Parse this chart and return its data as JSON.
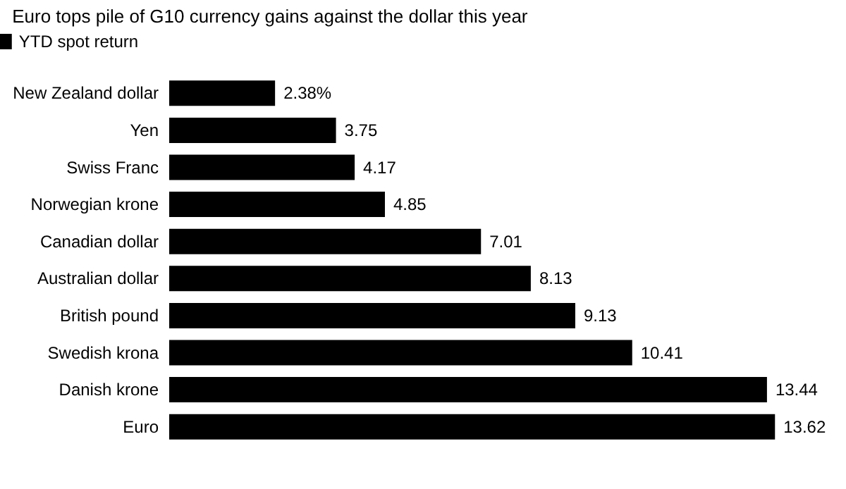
{
  "chart_data": {
    "type": "bar",
    "orientation": "horizontal",
    "title": "Euro tops pile of G10 currency gains against the dollar this year",
    "categories": [
      "New Zealand dollar",
      "Yen",
      "Swiss Franc",
      "Norwegian krone",
      "Canadian dollar",
      "Australian dollar",
      "British pound",
      "Swedish krona",
      "Danish krone",
      "Euro"
    ],
    "series": [
      {
        "name": "YTD spot return",
        "color": "#000000",
        "values": [
          2.38,
          3.75,
          4.17,
          4.85,
          7.01,
          8.13,
          9.13,
          10.41,
          13.44,
          13.62
        ],
        "value_labels": [
          "2.38%",
          "3.75",
          "4.17",
          "4.85",
          "7.01",
          "8.13",
          "9.13",
          "10.41",
          "13.44",
          "13.62"
        ]
      }
    ],
    "legend": "top left",
    "tick_labels": "y"
  }
}
